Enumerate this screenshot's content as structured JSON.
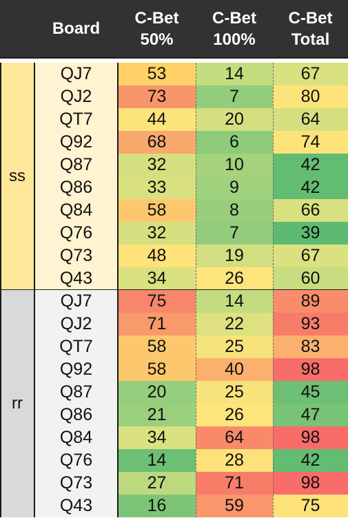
{
  "headers": {
    "board": "Board",
    "cbet50": [
      "C-Bet",
      "50%"
    ],
    "cbet100": [
      "C-Bet",
      "100%"
    ],
    "cbetTotal": [
      "C-Bet",
      "Total"
    ]
  },
  "groups": [
    {
      "label": "ss",
      "color": "#ffe79a",
      "board_bg": "#fff3d1",
      "rows": [
        {
          "board": "QJ7",
          "c50": "53",
          "c100": "14",
          "total": "67",
          "colors": [
            "#ffd166",
            "#c4dc80",
            "#d8e080"
          ]
        },
        {
          "board": "QJ2",
          "c50": "73",
          "c100": "7",
          "total": "80",
          "colors": [
            "#f7966a",
            "#93cd7c",
            "#fde47a"
          ]
        },
        {
          "board": "QT7",
          "c50": "44",
          "c100": "20",
          "total": "64",
          "colors": [
            "#fde47a",
            "#d5df80",
            "#d5df80"
          ]
        },
        {
          "board": "Q92",
          "c50": "68",
          "c100": "6",
          "total": "74",
          "colors": [
            "#f9a86e",
            "#8dcb7b",
            "#fde37a"
          ]
        },
        {
          "board": "Q87",
          "c50": "32",
          "c100": "10",
          "total": "42",
          "colors": [
            "#d5df80",
            "#a5d27d",
            "#62bc72"
          ]
        },
        {
          "board": "Q86",
          "c50": "33",
          "c100": "9",
          "total": "42",
          "colors": [
            "#d8e080",
            "#a0d17d",
            "#62bc72"
          ]
        },
        {
          "board": "Q84",
          "c50": "58",
          "c100": "8",
          "total": "66",
          "colors": [
            "#fdc86d",
            "#99cf7c",
            "#d8e080"
          ]
        },
        {
          "board": "Q76",
          "c50": "32",
          "c100": "7",
          "total": "39",
          "colors": [
            "#d5df80",
            "#93cd7c",
            "#5dba70"
          ]
        },
        {
          "board": "Q73",
          "c50": "48",
          "c100": "19",
          "total": "67",
          "colors": [
            "#fee27a",
            "#d2de80",
            "#dae180"
          ]
        },
        {
          "board": "Q43",
          "c50": "34",
          "c100": "26",
          "total": "60",
          "colors": [
            "#dae180",
            "#fde57b",
            "#c8dc80"
          ]
        }
      ]
    },
    {
      "label": "rr",
      "color": "#d9d9d9",
      "board_bg": "#f2f2f2",
      "rows": [
        {
          "board": "QJ7",
          "c50": "75",
          "c100": "14",
          "total": "89",
          "colors": [
            "#f7866a",
            "#c4dc80",
            "#f98d6b"
          ]
        },
        {
          "board": "QJ2",
          "c50": "71",
          "c100": "22",
          "total": "93",
          "colors": [
            "#f89a6b",
            "#dde180",
            "#f87c68"
          ]
        },
        {
          "board": "QT7",
          "c50": "58",
          "c100": "25",
          "total": "83",
          "colors": [
            "#fdc86d",
            "#f7e37c",
            "#fbb06f"
          ]
        },
        {
          "board": "Q92",
          "c50": "58",
          "c100": "40",
          "total": "98",
          "colors": [
            "#fdc86d",
            "#fbb06e",
            "#f86c69"
          ]
        },
        {
          "board": "Q87",
          "c50": "20",
          "c100": "25",
          "total": "45",
          "colors": [
            "#95ce7c",
            "#f7e37c",
            "#6cbf74"
          ]
        },
        {
          "board": "Q86",
          "c50": "21",
          "c100": "26",
          "total": "47",
          "colors": [
            "#9ad07c",
            "#fde57b",
            "#78c376"
          ]
        },
        {
          "board": "Q84",
          "c50": "34",
          "c100": "64",
          "total": "98",
          "colors": [
            "#dae180",
            "#f88a6a",
            "#f86c69"
          ]
        },
        {
          "board": "Q76",
          "c50": "14",
          "c100": "28",
          "total": "42",
          "colors": [
            "#6cbf74",
            "#fde17a",
            "#62bc72"
          ]
        },
        {
          "board": "Q73",
          "c50": "27",
          "c100": "71",
          "total": "98",
          "colors": [
            "#bcd97f",
            "#f87d68",
            "#f86c69"
          ]
        },
        {
          "board": "Q43",
          "c50": "16",
          "c100": "59",
          "total": "75",
          "colors": [
            "#7dc477",
            "#f9966b",
            "#fde27a"
          ]
        }
      ]
    }
  ]
}
